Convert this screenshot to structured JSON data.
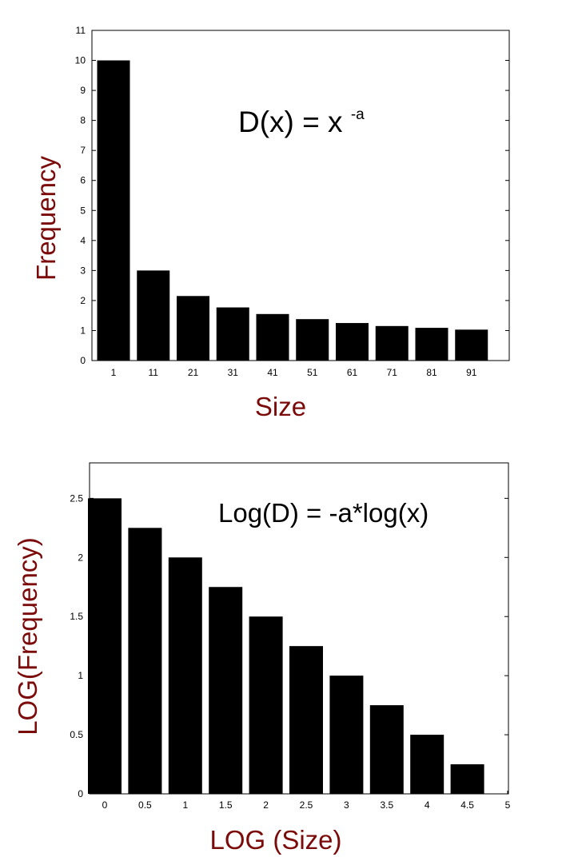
{
  "chart_data": [
    {
      "type": "bar",
      "categories": [
        "1",
        "11",
        "21",
        "31",
        "41",
        "51",
        "61",
        "71",
        "81",
        "91"
      ],
      "values": [
        10,
        3,
        2.15,
        1.77,
        1.55,
        1.38,
        1.25,
        1.15,
        1.09,
        1.03
      ],
      "title": "",
      "xlabel": "Size",
      "ylabel": "Frequency",
      "ylim": [
        0,
        11
      ],
      "yticks": [
        "0",
        "1",
        "2",
        "3",
        "4",
        "5",
        "6",
        "7",
        "8",
        "9",
        "10",
        "11"
      ],
      "annotation": {
        "base": "D(x) = x ",
        "sup": "-a"
      },
      "colors": {
        "bars": "#000000",
        "labels": "#7b0a0a"
      }
    },
    {
      "type": "bar",
      "x": [
        0,
        0.5,
        1,
        1.5,
        2,
        2.5,
        3,
        3.5,
        4,
        4.5
      ],
      "values": [
        2.5,
        2.25,
        2.0,
        1.75,
        1.5,
        1.25,
        1.0,
        0.75,
        0.5,
        0.25
      ],
      "title": "",
      "xlabel": "LOG (Size)",
      "ylabel": "LOG(Frequency)",
      "xlim": [
        0,
        5
      ],
      "ylim": [
        0,
        2.8
      ],
      "xticks": [
        "0",
        "0.5",
        "1",
        "1.5",
        "2",
        "2.5",
        "3",
        "3.5",
        "4",
        "4.5",
        "5"
      ],
      "yticks": [
        "0",
        "0.5",
        "1",
        "1.5",
        "2",
        "2.5"
      ],
      "annotation": {
        "base": "Log(D) = -a*log(x)"
      },
      "colors": {
        "bars": "#000000",
        "labels": "#7b0a0a"
      }
    }
  ]
}
